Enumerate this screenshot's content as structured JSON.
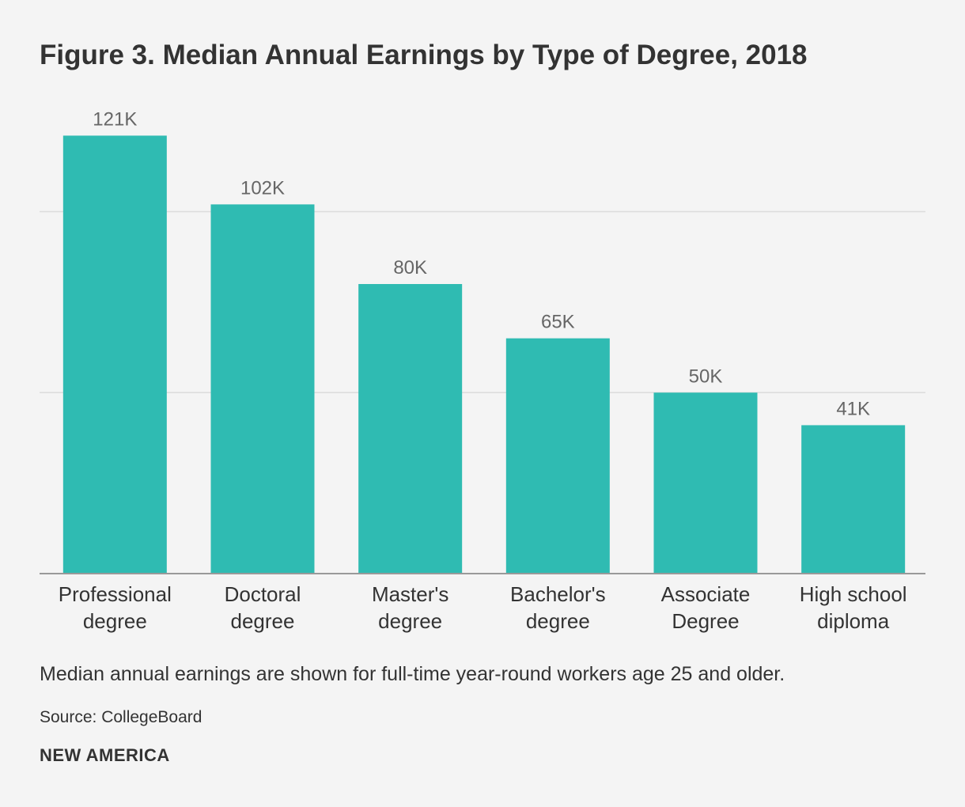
{
  "chart_data": {
    "type": "bar",
    "title": "Figure 3. Median Annual Earnings by Type of Degree, 2018",
    "categories": [
      [
        "Professional",
        "degree"
      ],
      [
        "Doctoral",
        "degree"
      ],
      [
        "Master's",
        "degree"
      ],
      [
        "Bachelor's",
        "degree"
      ],
      [
        "Associate",
        "Degree"
      ],
      [
        "High school",
        "diploma"
      ]
    ],
    "values": [
      121,
      102,
      80,
      65,
      50,
      41
    ],
    "value_labels": [
      "121K",
      "102K",
      "80K",
      "65K",
      "50K",
      "41K"
    ],
    "xlabel": "",
    "ylabel": "",
    "ylim": [
      0,
      130
    ],
    "gridlines": [
      50,
      100
    ],
    "grid": true,
    "legend": "none",
    "bar_color": "#2fbbb2",
    "gridline_color": "#dcdcdc",
    "axis_color": "#999999"
  },
  "note": "Median annual earnings are shown for full-time year-round workers age 25 and older.",
  "source": "Source: CollegeBoard",
  "brand": "NEW AMERICA"
}
